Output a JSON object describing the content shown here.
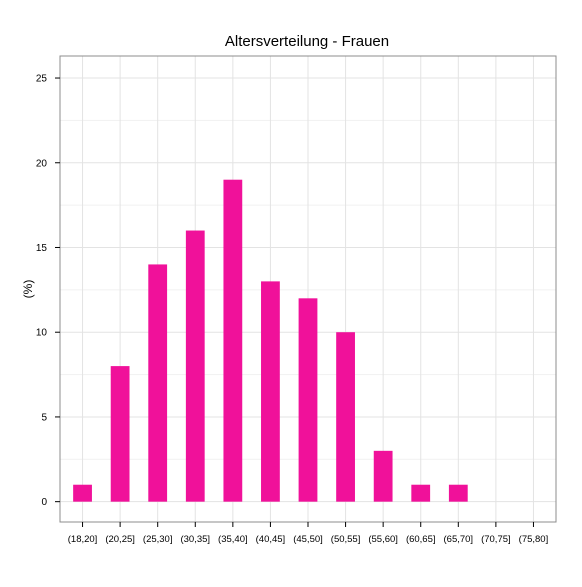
{
  "chart_data": {
    "type": "bar",
    "title": "Altersverteilung - Frauen",
    "xlabel": "",
    "ylabel": "(%)",
    "categories": [
      "(18,20]",
      "(20,25]",
      "(25,30]",
      "(30,35]",
      "(35,40]",
      "(40,45]",
      "(45,50]",
      "(50,55]",
      "(55,60]",
      "(60,65]",
      "(65,70]",
      "(70,75]",
      "(75,80]"
    ],
    "values": [
      1,
      8,
      14,
      16,
      19,
      13,
      12,
      10,
      3,
      1,
      1,
      0,
      0
    ],
    "ylim": [
      -1.2,
      26.3
    ],
    "yticks": [
      0,
      5,
      10,
      15,
      20,
      25
    ],
    "grid": true,
    "legend": "none",
    "colors": {
      "bar": "#F0119A",
      "grid_major": "#e3e3e3",
      "grid_minor": "#f1f1f1",
      "border": "#8c8c8c"
    }
  }
}
